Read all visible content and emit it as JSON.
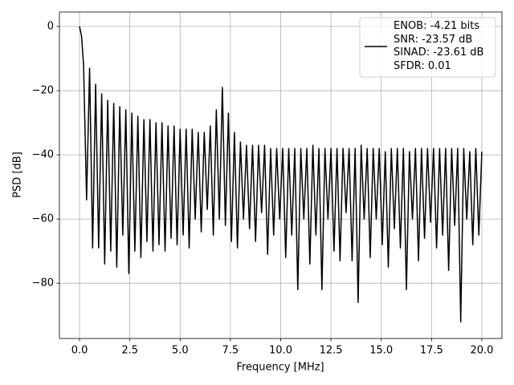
{
  "chart_data": {
    "type": "line",
    "xlabel": "Frequency [MHz]",
    "ylabel": "PSD [dB]",
    "xlim": [
      -1.0,
      21.0
    ],
    "ylim": [
      -97.2,
      4.5
    ],
    "xticks": [
      {
        "value": 0,
        "label": "0.0"
      },
      {
        "value": 2.5,
        "label": "2.5"
      },
      {
        "value": 5,
        "label": "5.0"
      },
      {
        "value": 7.5,
        "label": "7.5"
      },
      {
        "value": 10,
        "label": "10.0"
      },
      {
        "value": 12.5,
        "label": "12.5"
      },
      {
        "value": 15,
        "label": "15.0"
      },
      {
        "value": 17.5,
        "label": "17.5"
      },
      {
        "value": 20,
        "label": "20.0"
      }
    ],
    "yticks": [
      {
        "value": 0,
        "label": "0"
      },
      {
        "value": -20,
        "label": "−20"
      },
      {
        "value": -40,
        "label": "−40"
      },
      {
        "value": -60,
        "label": "−60"
      },
      {
        "value": -80,
        "label": "−80"
      }
    ],
    "grid": true,
    "legend": "upper right",
    "x": [
      0,
      0.1,
      0.2,
      0.35,
      0.5,
      0.65,
      0.8,
      0.95,
      1.1,
      1.25,
      1.4,
      1.55,
      1.7,
      1.85,
      2.0,
      2.15,
      2.3,
      2.45,
      2.6,
      2.75,
      2.9,
      3.05,
      3.2,
      3.35,
      3.5,
      3.65,
      3.8,
      3.95,
      4.1,
      4.25,
      4.4,
      4.55,
      4.7,
      4.85,
      5.0,
      5.15,
      5.3,
      5.45,
      5.6,
      5.75,
      5.9,
      6.05,
      6.2,
      6.35,
      6.5,
      6.65,
      6.8,
      6.95,
      7.1,
      7.25,
      7.4,
      7.55,
      7.7,
      7.85,
      8.0,
      8.15,
      8.3,
      8.45,
      8.6,
      8.75,
      8.9,
      9.05,
      9.2,
      9.35,
      9.5,
      9.65,
      9.8,
      9.95,
      10.1,
      10.25,
      10.4,
      10.55,
      10.7,
      10.85,
      11.0,
      11.15,
      11.3,
      11.45,
      11.6,
      11.75,
      11.9,
      12.05,
      12.2,
      12.35,
      12.5,
      12.65,
      12.8,
      12.95,
      13.1,
      13.25,
      13.4,
      13.55,
      13.7,
      13.85,
      14.0,
      14.15,
      14.3,
      14.45,
      14.6,
      14.75,
      14.9,
      15.05,
      15.2,
      15.35,
      15.5,
      15.65,
      15.8,
      15.95,
      16.1,
      16.25,
      16.4,
      16.55,
      16.7,
      16.85,
      17.0,
      17.15,
      17.3,
      17.45,
      17.6,
      17.75,
      17.9,
      18.05,
      18.2,
      18.35,
      18.5,
      18.65,
      18.8,
      18.95,
      19.1,
      19.25,
      19.4,
      19.55,
      19.7,
      19.85,
      20.0
    ],
    "series": [
      {
        "name": "ENOB: -4.21 bits\nSNR: -23.57 dB\nSINAD: -23.61 dB\nSFDR: 0.01",
        "color": "#000000",
        "values": [
          0,
          -3,
          -12,
          -54,
          -13,
          -69,
          -18,
          -69,
          -21,
          -74,
          -23,
          -70,
          -24,
          -75,
          -25,
          -65,
          -26,
          -77,
          -27,
          -70,
          -28,
          -72,
          -29,
          -67,
          -29,
          -70,
          -30,
          -68,
          -30,
          -70,
          -31,
          -66,
          -31,
          -68,
          -32,
          -65,
          -32,
          -69,
          -32,
          -60,
          -33,
          -64,
          -33,
          -57,
          -31,
          -65,
          -26,
          -60,
          -19,
          -62,
          -27,
          -67,
          -33,
          -69,
          -36,
          -60,
          -37,
          -63,
          -37,
          -67,
          -37,
          -58,
          -37,
          -71,
          -38,
          -65,
          -38,
          -60,
          -38,
          -72,
          -38,
          -65,
          -38,
          -82,
          -38,
          -60,
          -38,
          -74,
          -37,
          -65,
          -38,
          -82,
          -38,
          -60,
          -38,
          -70,
          -38,
          -73,
          -38,
          -58,
          -38,
          -73,
          -38,
          -86,
          -37,
          -60,
          -38,
          -72,
          -38,
          -60,
          -38,
          -68,
          -39,
          -75,
          -38,
          -63,
          -38,
          -69,
          -38,
          -82,
          -39,
          -60,
          -38,
          -73,
          -38,
          -66,
          -38,
          -61,
          -38,
          -69,
          -38,
          -65,
          -38,
          -76,
          -38,
          -62,
          -38,
          -92,
          -38,
          -60,
          -39,
          -68,
          -38,
          -65,
          -39
        ]
      }
    ]
  }
}
